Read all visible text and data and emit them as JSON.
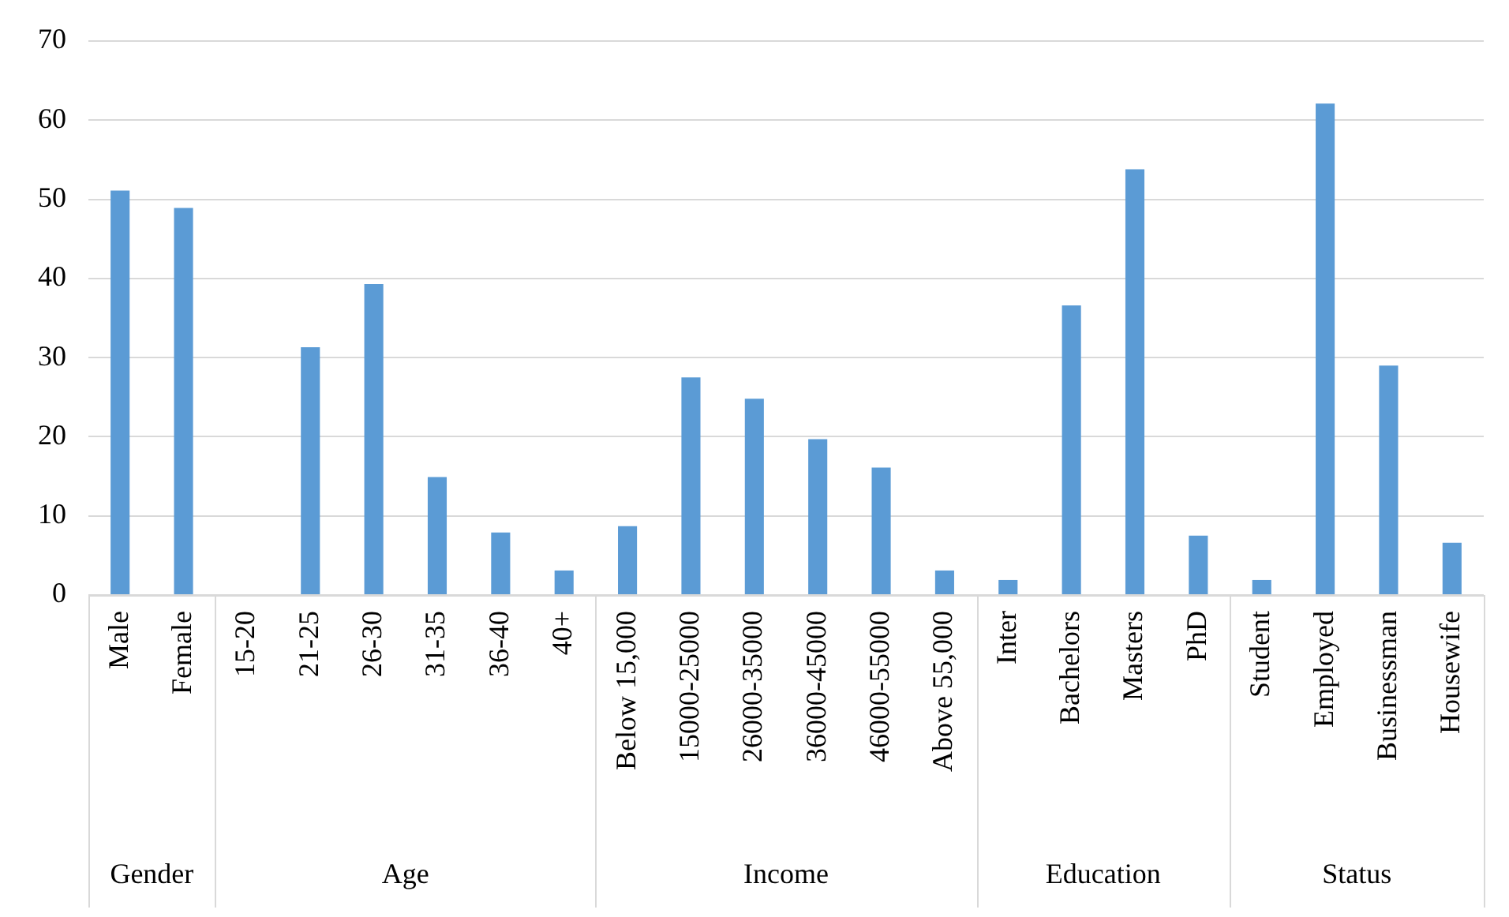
{
  "chart_data": {
    "type": "bar",
    "categories": [
      "Male",
      "Female",
      "15-20",
      "21-25",
      "26-30",
      "31-35",
      "36-40",
      "40+",
      "Below 15,000",
      "15000-25000",
      "26000-35000",
      "36000-45000",
      "46000-55000",
      "Above 55,000",
      "Inter",
      "Bachelors",
      "Masters",
      "PhD",
      "Student",
      "Employed",
      "Businessman",
      "Housewife"
    ],
    "values": [
      51.1,
      48.9,
      0,
      31.3,
      39.3,
      14.9,
      7.9,
      3.1,
      8.7,
      27.5,
      24.8,
      19.7,
      16.1,
      3.1,
      1.9,
      36.6,
      53.8,
      7.5,
      1.9,
      62.1,
      29.0,
      6.6
    ],
    "color": "#5b9bd5",
    "ylim": [
      0,
      70
    ],
    "yticks": [
      0,
      10,
      20,
      30,
      40,
      50,
      60,
      70
    ],
    "grid": "y",
    "annotations": [
      "Gender",
      "Age",
      "Income",
      "Education",
      "Status"
    ]
  }
}
